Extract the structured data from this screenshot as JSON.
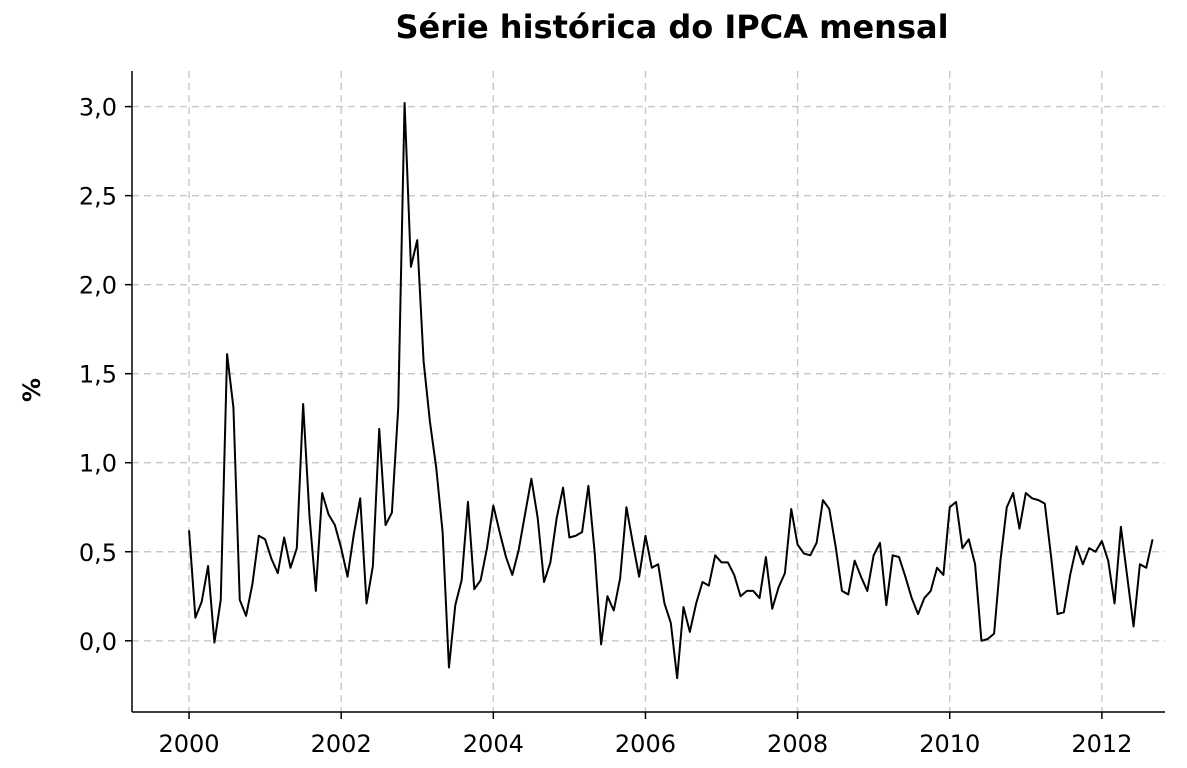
{
  "chart_data": {
    "type": "line",
    "title": "Série histórica do IPCA mensal",
    "xlabel": "",
    "ylabel": "%",
    "x_ticks": [
      "2000",
      "2002",
      "2004",
      "2006",
      "2008",
      "2010",
      "2012"
    ],
    "y_ticks": [
      "0,0",
      "0,5",
      "1,0",
      "1,5",
      "2,0",
      "2,5",
      "3,0"
    ],
    "xlim": [
      1999.25,
      2012.83
    ],
    "ylim": [
      -0.4,
      3.2
    ],
    "grid": true,
    "colors": {
      "line": "#000000",
      "grid": "#c8c8c8"
    },
    "series": [
      {
        "values": [
          0.62,
          0.13,
          0.22,
          0.42,
          -0.01,
          0.23,
          1.61,
          1.31,
          0.23,
          0.14,
          0.32,
          0.59,
          0.57,
          0.46,
          0.38,
          0.58,
          0.41,
          0.52,
          1.33,
          0.7,
          0.28,
          0.83,
          0.71,
          0.65,
          0.52,
          0.36,
          0.6,
          0.8,
          0.21,
          0.42,
          1.19,
          0.65,
          0.72,
          1.31,
          3.02,
          2.1,
          2.25,
          1.57,
          1.23,
          0.97,
          0.61,
          -0.15,
          0.2,
          0.34,
          0.78,
          0.29,
          0.34,
          0.52,
          0.76,
          0.61,
          0.47,
          0.37,
          0.51,
          0.71,
          0.91,
          0.69,
          0.33,
          0.44,
          0.69,
          0.86,
          0.58,
          0.59,
          0.61,
          0.87,
          0.49,
          -0.02,
          0.25,
          0.17,
          0.35,
          0.75,
          0.55,
          0.36,
          0.59,
          0.41,
          0.43,
          0.21,
          0.1,
          -0.21,
          0.19,
          0.05,
          0.21,
          0.33,
          0.31,
          0.48,
          0.44,
          0.44,
          0.37,
          0.25,
          0.28,
          0.28,
          0.24,
          0.47,
          0.18,
          0.3,
          0.38,
          0.74,
          0.54,
          0.49,
          0.48,
          0.55,
          0.79,
          0.74,
          0.53,
          0.28,
          0.26,
          0.45,
          0.36,
          0.28,
          0.48,
          0.55,
          0.2,
          0.48,
          0.47,
          0.36,
          0.24,
          0.15,
          0.24,
          0.28,
          0.41,
          0.37,
          0.75,
          0.78,
          0.52,
          0.57,
          0.43,
          0.0,
          0.01,
          0.04,
          0.45,
          0.75,
          0.83,
          0.63,
          0.83,
          0.8,
          0.79,
          0.77,
          0.47,
          0.15,
          0.16,
          0.37,
          0.53,
          0.43,
          0.52,
          0.5,
          0.56,
          0.45,
          0.21,
          0.64,
          0.36,
          0.08,
          0.43,
          0.41,
          0.57
        ]
      }
    ]
  }
}
